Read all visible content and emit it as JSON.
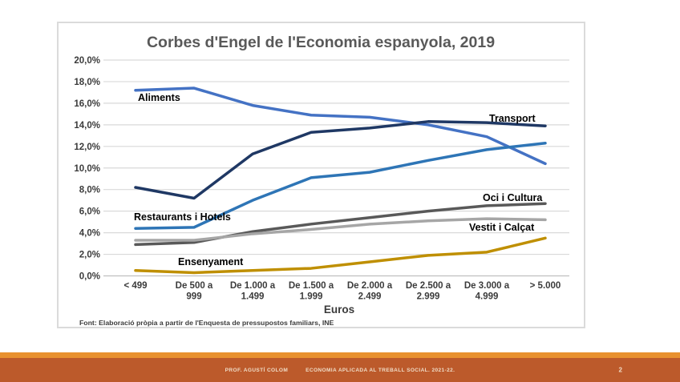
{
  "footer": {
    "author": "PROF. AGUSTÍ COLOM",
    "course": "ECONOMIA APLICADA AL TREBALL SOCIAL. 2021-22.",
    "page_number": "2",
    "accent_color": "#E8912F",
    "band_color": "#BC5A2B",
    "text_color": "#F0DCC6"
  },
  "chart_data": {
    "type": "line",
    "title": "Corbes d'Engel de l'Economia espanyola, 2019",
    "title_color": "#595959",
    "xlabel": "Euros",
    "source_note": "Font: Elaboració pròpia a partir de l'Enquesta de pressupostos familiars, INE",
    "categories": [
      "< 499",
      "De 500 a 999",
      "De 1.000 a 1.499",
      "De 1.500 a 1.999",
      "De 2.000 a 2.499",
      "De 2.500 a 2.999",
      "De 3.000 a 4.999",
      "> 5.000"
    ],
    "category_label_lines": [
      [
        "< 499"
      ],
      [
        "De 500 a",
        "999"
      ],
      [
        "De 1.000 a",
        "1.499"
      ],
      [
        "De 1.500 a",
        "1.999"
      ],
      [
        "De 2.000 a",
        "2.499"
      ],
      [
        "De 2.500 a",
        "2.999"
      ],
      [
        "De 3.000 a",
        "4.999"
      ],
      [
        "> 5.000"
      ]
    ],
    "ylim": [
      0,
      20
    ],
    "ytick_step": 2,
    "ytick_labels": [
      "0,0%",
      "2,0%",
      "4,0%",
      "6,0%",
      "8,0%",
      "10,0%",
      "12,0%",
      "14,0%",
      "16,0%",
      "18,0%",
      "20,0%"
    ],
    "grid": true,
    "gridline_color": "#D9D9D9",
    "axisline_color": "#BFBFBF",
    "tick_label_color": "#3B3B3B",
    "legend_position": "labels-on-lines",
    "series": [
      {
        "name": "Aliments",
        "color": "#4472C4",
        "values": [
          17.2,
          17.4,
          15.8,
          14.9,
          14.7,
          14.0,
          12.9,
          10.4
        ]
      },
      {
        "name": "Transport",
        "color": "#1F3864",
        "values": [
          8.2,
          7.2,
          11.3,
          13.3,
          13.7,
          14.3,
          14.2,
          13.9
        ]
      },
      {
        "name": "Restaurants i Hotels",
        "color": "#2E75B6",
        "values": [
          4.4,
          4.5,
          7.0,
          9.1,
          9.6,
          10.7,
          11.7,
          12.3
        ]
      },
      {
        "name": "Oci i Cultura",
        "color": "#595959",
        "values": [
          2.9,
          3.1,
          4.1,
          4.8,
          5.4,
          6.0,
          6.5,
          6.7
        ]
      },
      {
        "name": "Vestit i Calçat",
        "color": "#A6A6A6",
        "values": [
          3.3,
          3.3,
          3.9,
          4.3,
          4.8,
          5.1,
          5.3,
          5.2
        ]
      },
      {
        "name": "Ensenyament",
        "color": "#BF8F00",
        "values": [
          0.5,
          0.3,
          0.5,
          0.7,
          1.3,
          1.9,
          2.2,
          3.5
        ]
      }
    ]
  }
}
